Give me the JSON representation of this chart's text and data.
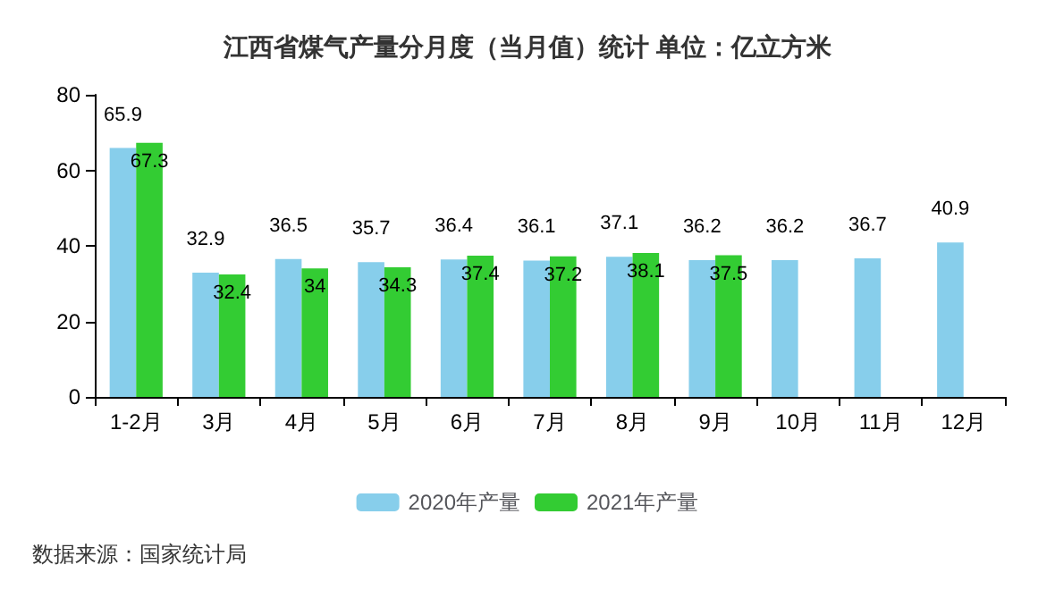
{
  "chart_data": {
    "type": "bar",
    "title": "江西省煤气产量分月度（当月值）统计 单位：亿立方米",
    "categories": [
      "1-2月",
      "3月",
      "4月",
      "5月",
      "6月",
      "7月",
      "8月",
      "9月",
      "10月",
      "11月",
      "12月"
    ],
    "series": [
      {
        "name": "2020年产量",
        "color": "#87ceeb",
        "values": [
          65.9,
          32.9,
          36.5,
          35.7,
          36.4,
          36.1,
          37.1,
          36.2,
          36.2,
          36.7,
          40.9
        ]
      },
      {
        "name": "2021年产量",
        "color": "#33cc33",
        "values": [
          67.3,
          32.4,
          34,
          34.3,
          37.4,
          37.2,
          38.1,
          37.5,
          null,
          null,
          null
        ]
      }
    ],
    "ylim": [
      0,
      80
    ],
    "yticks": [
      0,
      20,
      40,
      60,
      80
    ],
    "grid": false,
    "legend": "bottom",
    "data_labels": true,
    "annotations": [
      "数据来源：国家统计局"
    ]
  }
}
